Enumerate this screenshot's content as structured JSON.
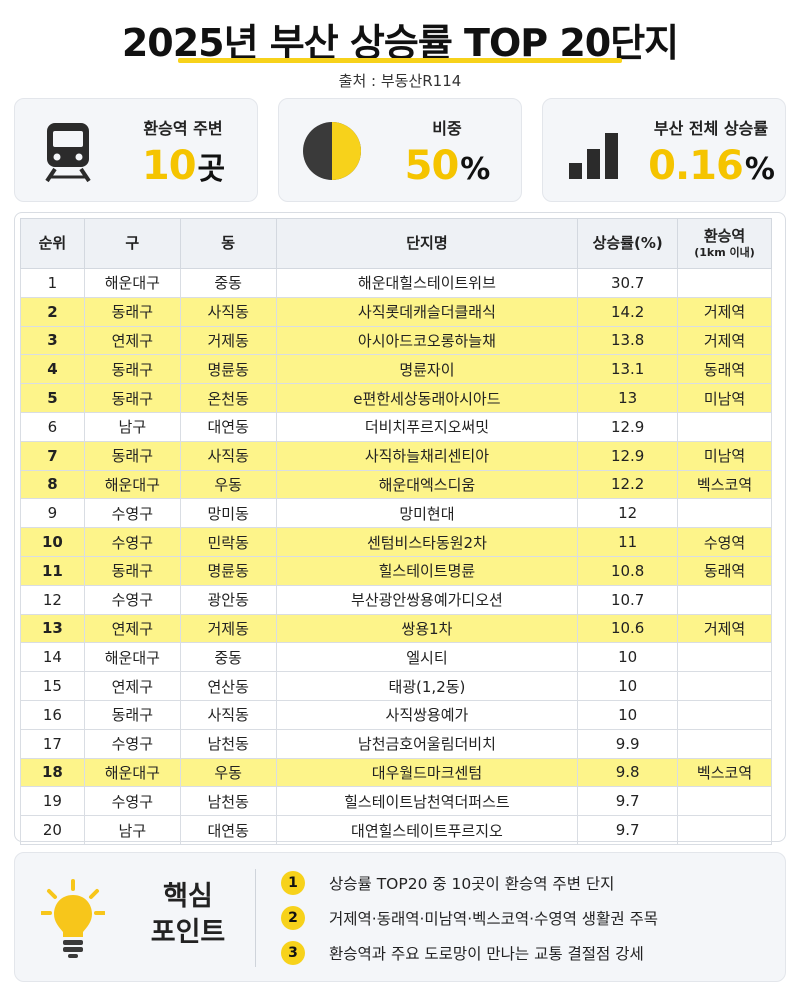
{
  "title": "2025년 부산 상승률 TOP 20단지",
  "source": "출처 : 부동산R114",
  "colors": {
    "accent": "#f7d21b",
    "highlight_row": "#fdf48a",
    "value_text": "#f5c400"
  },
  "stats": [
    {
      "icon": "train-icon",
      "label": "환승역 주변",
      "value": "10",
      "unit": "곳"
    },
    {
      "icon": "pie-chart-icon",
      "label": "비중",
      "value": "50",
      "unit": "%",
      "pie_fraction": 0.5
    },
    {
      "icon": "bar-chart-icon",
      "label": "부산 전체 상승률",
      "value": "0.16",
      "unit": "%"
    }
  ],
  "table": {
    "headers": {
      "rank": "순위",
      "gu": "구",
      "dong": "동",
      "name": "단지명",
      "rate": "상승률(%)",
      "station": "환승역",
      "station_sub": "(1km 이내)"
    },
    "rows": [
      {
        "rank": "1",
        "gu": "해운대구",
        "dong": "중동",
        "name": "해운대힐스테이트위브",
        "rate": "30.7",
        "station": "",
        "highlight": false
      },
      {
        "rank": "2",
        "gu": "동래구",
        "dong": "사직동",
        "name": "사직롯데캐슬더클래식",
        "rate": "14.2",
        "station": "거제역",
        "highlight": true
      },
      {
        "rank": "3",
        "gu": "연제구",
        "dong": "거제동",
        "name": "아시아드코오롱하늘채",
        "rate": "13.8",
        "station": "거제역",
        "highlight": true
      },
      {
        "rank": "4",
        "gu": "동래구",
        "dong": "명륜동",
        "name": "명륜자이",
        "rate": "13.1",
        "station": "동래역",
        "highlight": true
      },
      {
        "rank": "5",
        "gu": "동래구",
        "dong": "온천동",
        "name": "e편한세상동래아시아드",
        "rate": "13",
        "station": "미남역",
        "highlight": true
      },
      {
        "rank": "6",
        "gu": "남구",
        "dong": "대연동",
        "name": "더비치푸르지오써밋",
        "rate": "12.9",
        "station": "",
        "highlight": false
      },
      {
        "rank": "7",
        "gu": "동래구",
        "dong": "사직동",
        "name": "사직하늘채리센티아",
        "rate": "12.9",
        "station": "미남역",
        "highlight": true
      },
      {
        "rank": "8",
        "gu": "해운대구",
        "dong": "우동",
        "name": "해운대엑스디움",
        "rate": "12.2",
        "station": "벡스코역",
        "highlight": true
      },
      {
        "rank": "9",
        "gu": "수영구",
        "dong": "망미동",
        "name": "망미현대",
        "rate": "12",
        "station": "",
        "highlight": false
      },
      {
        "rank": "10",
        "gu": "수영구",
        "dong": "민락동",
        "name": "센텀비스타동원2차",
        "rate": "11",
        "station": "수영역",
        "highlight": true
      },
      {
        "rank": "11",
        "gu": "동래구",
        "dong": "명륜동",
        "name": "힐스테이트명륜",
        "rate": "10.8",
        "station": "동래역",
        "highlight": true
      },
      {
        "rank": "12",
        "gu": "수영구",
        "dong": "광안동",
        "name": "부산광안쌍용예가디오션",
        "rate": "10.7",
        "station": "",
        "highlight": false
      },
      {
        "rank": "13",
        "gu": "연제구",
        "dong": "거제동",
        "name": "쌍용1차",
        "rate": "10.6",
        "station": "거제역",
        "highlight": true
      },
      {
        "rank": "14",
        "gu": "해운대구",
        "dong": "중동",
        "name": "엘시티",
        "rate": "10",
        "station": "",
        "highlight": false
      },
      {
        "rank": "15",
        "gu": "연제구",
        "dong": "연산동",
        "name": "태광(1,2동)",
        "rate": "10",
        "station": "",
        "highlight": false
      },
      {
        "rank": "16",
        "gu": "동래구",
        "dong": "사직동",
        "name": "사직쌍용예가",
        "rate": "10",
        "station": "",
        "highlight": false
      },
      {
        "rank": "17",
        "gu": "수영구",
        "dong": "남천동",
        "name": "남천금호어울림더비치",
        "rate": "9.9",
        "station": "",
        "highlight": false
      },
      {
        "rank": "18",
        "gu": "해운대구",
        "dong": "우동",
        "name": "대우월드마크센텀",
        "rate": "9.8",
        "station": "벡스코역",
        "highlight": true
      },
      {
        "rank": "19",
        "gu": "수영구",
        "dong": "남천동",
        "name": "힐스테이트남천역더퍼스트",
        "rate": "9.7",
        "station": "",
        "highlight": false
      },
      {
        "rank": "20",
        "gu": "남구",
        "dong": "대연동",
        "name": "대연힐스테이트푸르지오",
        "rate": "9.7",
        "station": "",
        "highlight": false
      }
    ]
  },
  "key_points": {
    "icon": "lightbulb-icon",
    "title_line1": "핵심",
    "title_line2": "포인트",
    "items": [
      {
        "num": "1",
        "text": "상승률 TOP20 중 10곳이 환승역 주변 단지"
      },
      {
        "num": "2",
        "text": "거제역·동래역·미남역·벡스코역·수영역 생활권 주목"
      },
      {
        "num": "3",
        "text": "환승역과 주요 도로망이 만나는 교통 결절점 강세"
      }
    ]
  }
}
